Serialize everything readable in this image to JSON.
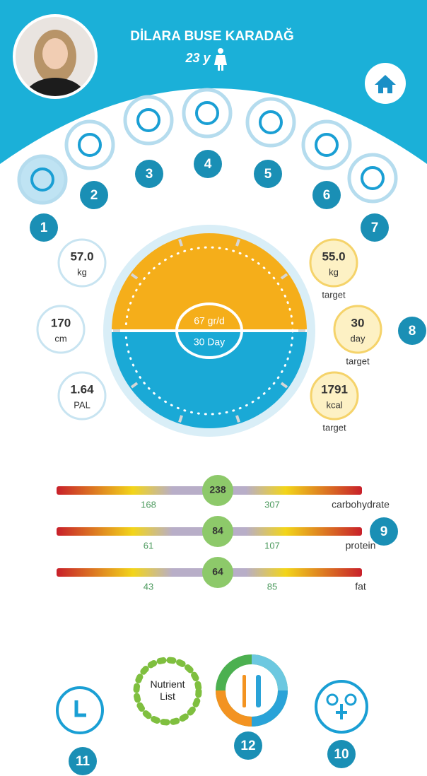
{
  "profile": {
    "name": "DİLARA BUSE KARADAĞ",
    "age": "23 y"
  },
  "badges": [
    1,
    2,
    3,
    4,
    5,
    6,
    7,
    8,
    9,
    10,
    11,
    12
  ],
  "body_metrics": [
    {
      "value": "57.0",
      "unit": "kg"
    },
    {
      "value": "170",
      "unit": "cm"
    },
    {
      "value": "1.64",
      "unit": "PAL"
    }
  ],
  "targets": [
    {
      "value": "55.0",
      "unit": "kg",
      "note": "target"
    },
    {
      "value": "30",
      "unit": "day",
      "note": "target"
    },
    {
      "value": "1791",
      "unit": "kcal",
      "note": "target"
    }
  ],
  "gauge": {
    "rate": "67 gr/d",
    "duration": "30 Day"
  },
  "macros": [
    {
      "value": "238",
      "min": "168",
      "max": "307",
      "name": "carbohydrate"
    },
    {
      "value": "84",
      "min": "61",
      "max": "107",
      "name": "protein"
    },
    {
      "value": "64",
      "min": "43",
      "max": "85",
      "name": "fat"
    }
  ],
  "nutrient_list": "Nutrient List"
}
